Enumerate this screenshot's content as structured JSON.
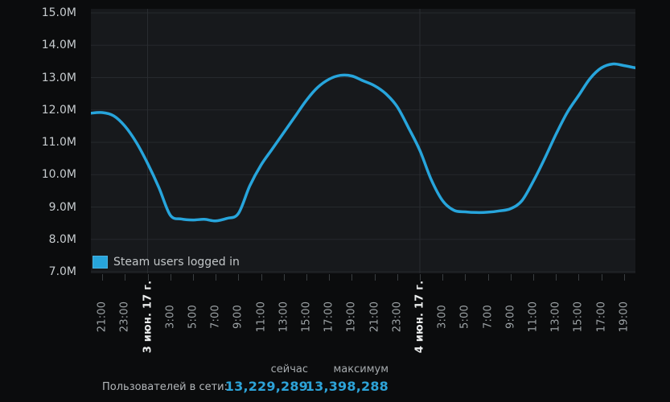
{
  "window": {
    "background": "#0b0c0d"
  },
  "chart": {
    "plot_bg": "#17191c",
    "grid_color": "#26292d",
    "day_line_color": "#2a2d31",
    "axis_tick_color": "#3a3e41",
    "y_label_color": "#c6cbce",
    "x_label_color": "#9ea4a7",
    "x_date_label_color": "#eaecec"
  },
  "chart_data": {
    "type": "line",
    "title": "",
    "xlabel": "",
    "ylabel": "",
    "ylim_millions": [
      7,
      15
    ],
    "grid": true,
    "legend_position": "bottom-left-inside",
    "y_ticks": [
      {
        "value": 15,
        "label": "15.0M"
      },
      {
        "value": 14,
        "label": "14.0M"
      },
      {
        "value": 13,
        "label": "13.0M"
      },
      {
        "value": 12,
        "label": "12.0M"
      },
      {
        "value": 11,
        "label": "11.0M"
      },
      {
        "value": 10,
        "label": "10.0M"
      },
      {
        "value": 9,
        "label": "9.0M"
      },
      {
        "value": 8,
        "label": "8.0M"
      },
      {
        "value": 7,
        "label": "7.0M"
      }
    ],
    "x_ticks": [
      {
        "t": 1,
        "label": "21:00",
        "date": false
      },
      {
        "t": 3,
        "label": "23:00",
        "date": false
      },
      {
        "t": 5,
        "label": "3 июн. 17 г.",
        "date": true
      },
      {
        "t": 7,
        "label": "3:00",
        "date": false
      },
      {
        "t": 9,
        "label": "5:00",
        "date": false
      },
      {
        "t": 11,
        "label": "7:00",
        "date": false
      },
      {
        "t": 13,
        "label": "9:00",
        "date": false
      },
      {
        "t": 15,
        "label": "11:00",
        "date": false
      },
      {
        "t": 17,
        "label": "13:00",
        "date": false
      },
      {
        "t": 19,
        "label": "15:00",
        "date": false
      },
      {
        "t": 21,
        "label": "17:00",
        "date": false
      },
      {
        "t": 23,
        "label": "19:00",
        "date": false
      },
      {
        "t": 25,
        "label": "21:00",
        "date": false
      },
      {
        "t": 27,
        "label": "23:00",
        "date": false
      },
      {
        "t": 29,
        "label": "4 июн. 17 г.",
        "date": true
      },
      {
        "t": 31,
        "label": "3:00",
        "date": false
      },
      {
        "t": 33,
        "label": "5:00",
        "date": false
      },
      {
        "t": 35,
        "label": "7:00",
        "date": false
      },
      {
        "t": 37,
        "label": "9:00",
        "date": false
      },
      {
        "t": 39,
        "label": "11:00",
        "date": false
      },
      {
        "t": 41,
        "label": "13:00",
        "date": false
      },
      {
        "t": 43,
        "label": "15:00",
        "date": false
      },
      {
        "t": 45,
        "label": "17:00",
        "date": false
      },
      {
        "t": 47,
        "label": "19:00",
        "date": false
      }
    ],
    "day_lines_t": [
      5,
      29
    ],
    "hours_span": 48,
    "series": [
      {
        "name": "Steam users logged in",
        "color": "#27a5dc",
        "unit": "millions_of_users",
        "step_hours": 1,
        "values_millions": [
          11.9,
          11.92,
          11.82,
          11.5,
          11.0,
          10.35,
          9.6,
          8.75,
          8.63,
          8.6,
          8.62,
          8.57,
          8.65,
          8.8,
          9.65,
          10.3,
          10.8,
          11.3,
          11.8,
          12.3,
          12.7,
          12.95,
          13.07,
          13.05,
          12.9,
          12.75,
          12.5,
          12.1,
          11.45,
          10.75,
          9.85,
          9.2,
          8.9,
          8.85,
          8.83,
          8.84,
          8.88,
          8.95,
          9.2,
          9.8,
          10.5,
          11.25,
          11.93,
          12.45,
          12.97,
          13.3,
          13.42,
          13.37,
          13.3
        ]
      }
    ]
  },
  "stats": {
    "now_header": "сейчас",
    "max_header": "максимум",
    "row_label": "Пользователей в сети:",
    "now_value": "13,229,289",
    "max_value": "13,398,288",
    "value_color": "#2da3d8"
  }
}
